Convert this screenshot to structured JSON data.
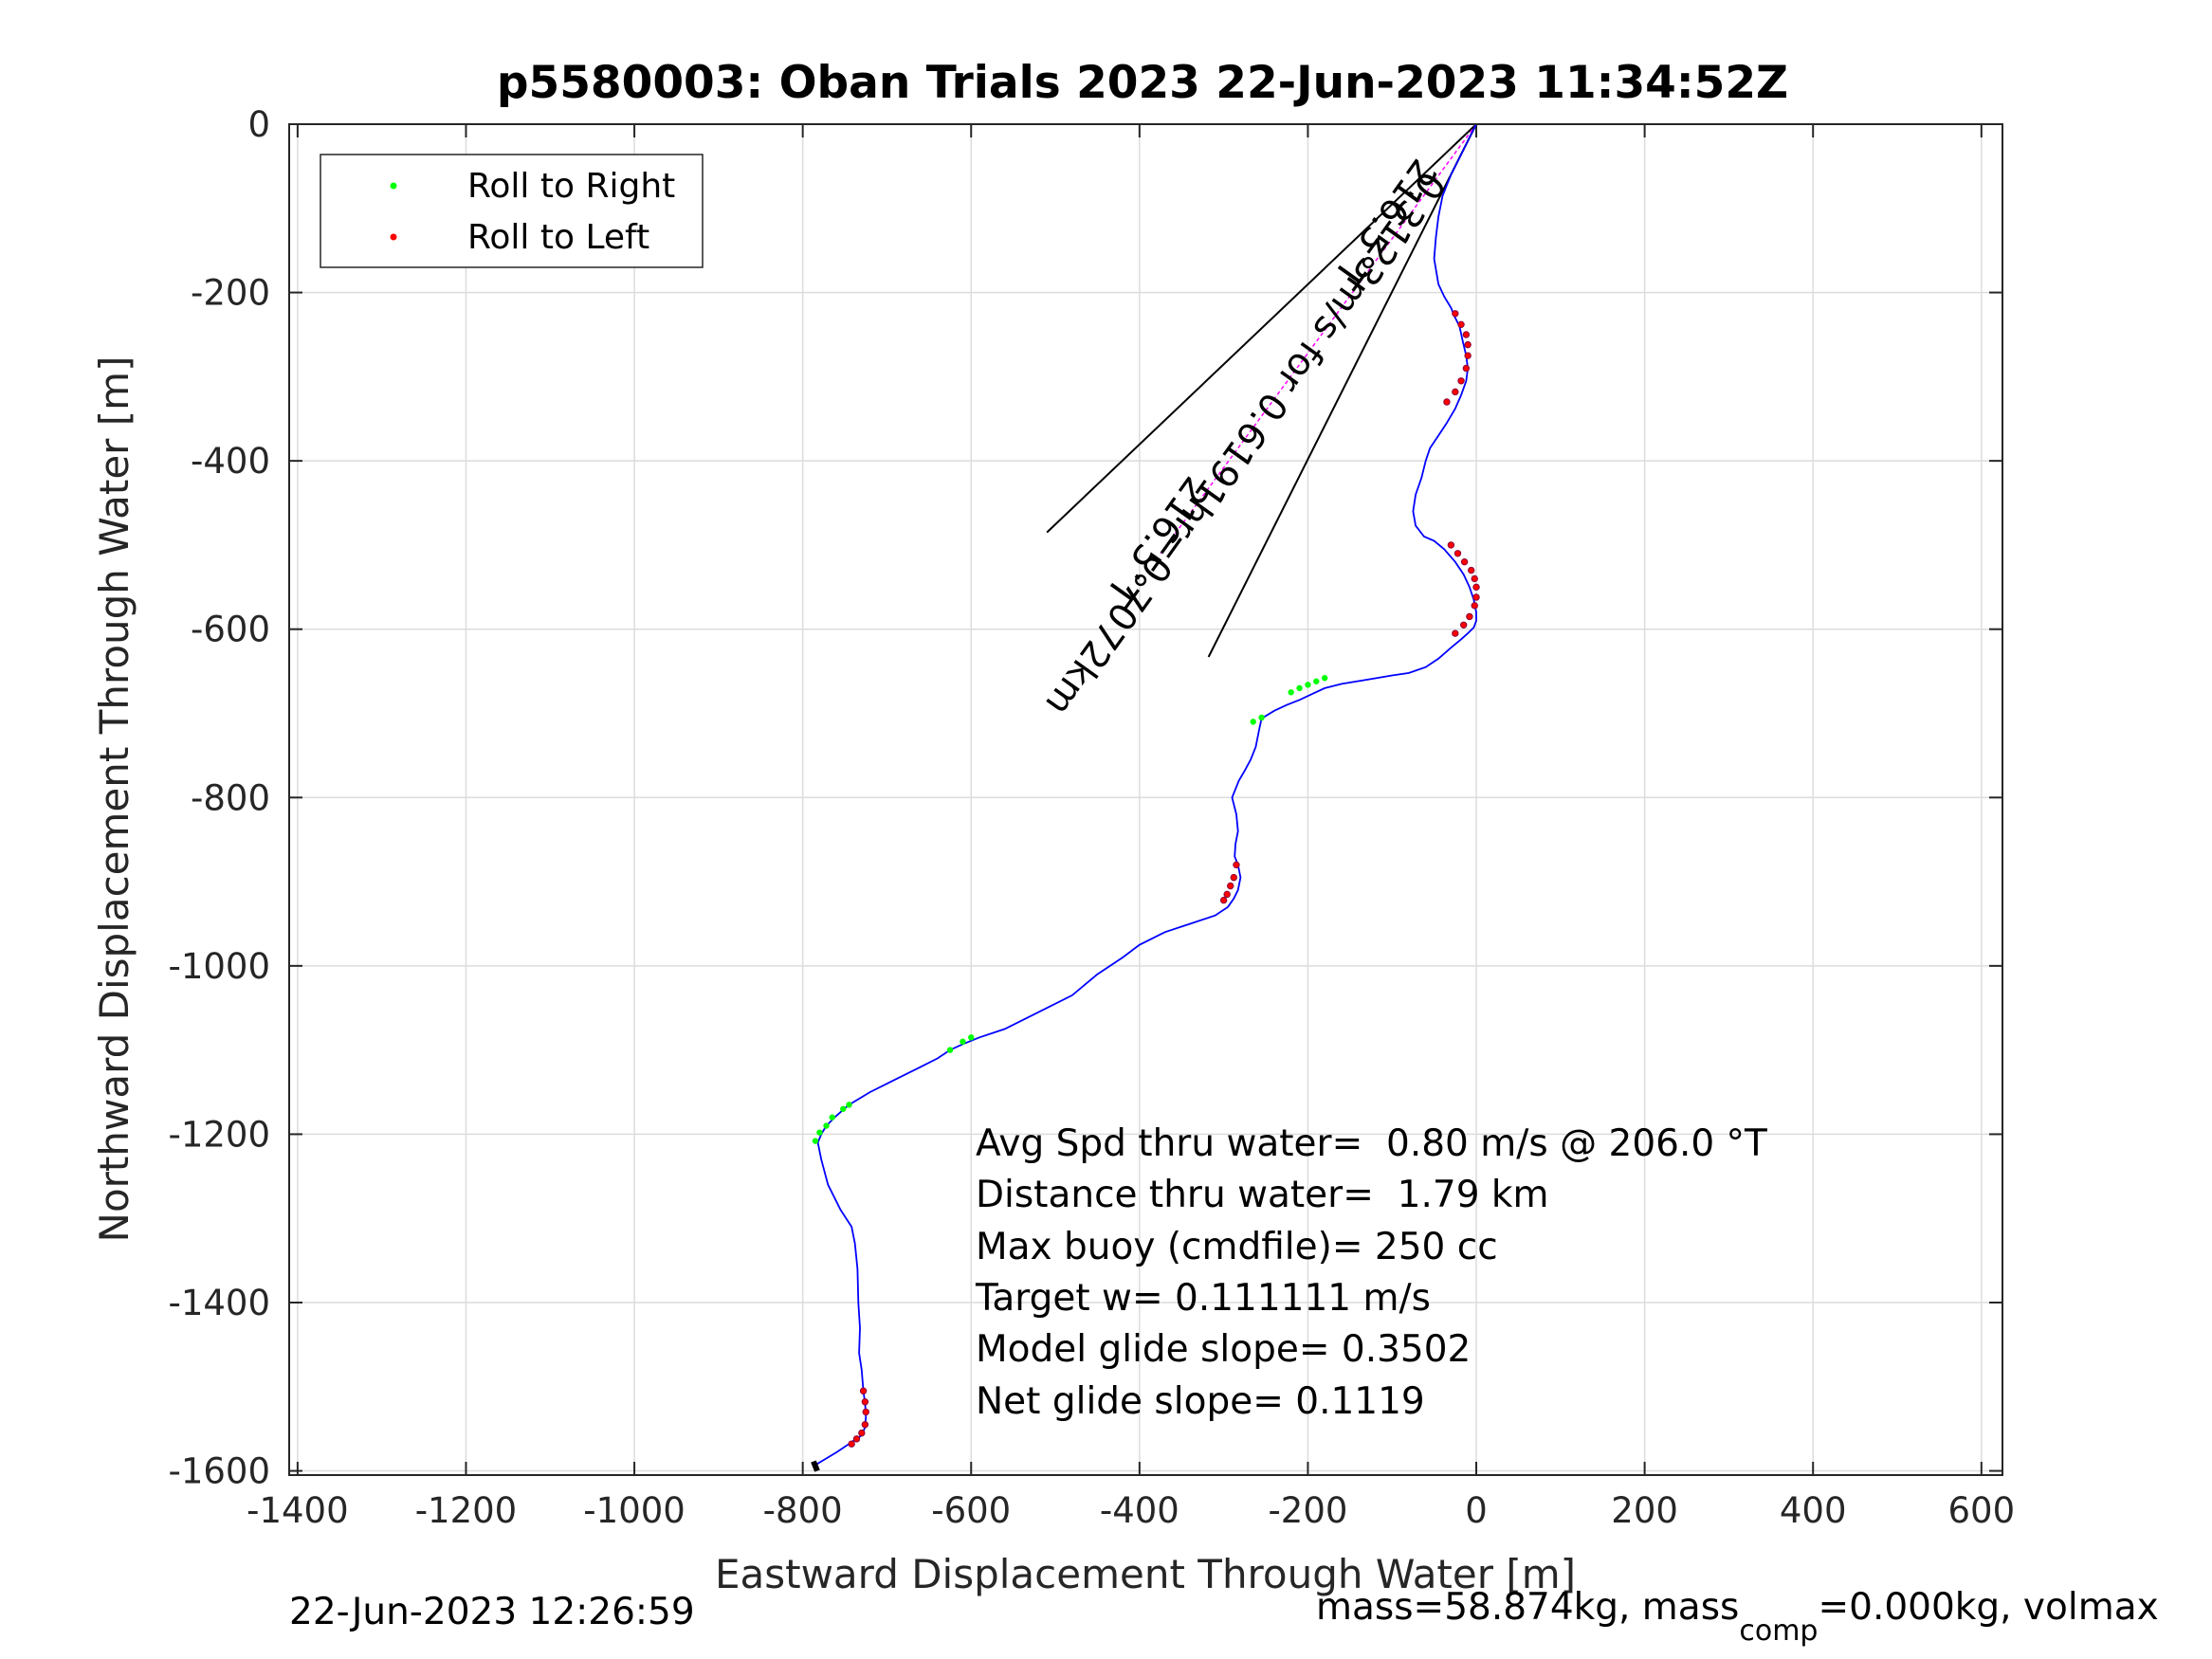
{
  "title": "p5580003: Oban Trials 2023 22-Jun-2023 11:34:52Z",
  "footer": {
    "left": "22-Jun-2023 12:26:59",
    "right_prefix": "mass=58.874kg, mass",
    "right_sub": "comp",
    "right_suffix": "=0.000kg, volmax"
  },
  "legend": [
    {
      "label": "Roll to Right",
      "color": "#00ff00"
    },
    {
      "label": "Roll to Left",
      "color": "#ff0000"
    }
  ],
  "annotations": [
    "Avg Spd thru water=  0.80 m/s @ 206.0 °T",
    "Distance thru water=  1.79 km",
    "Max buoy (cmdfile)= 250 cc",
    "Target w= 0.111111 m/s",
    "Model glide slope= 0.3502",
    "Net glide slope= 0.1119"
  ],
  "rotated_labels": [
    "0.3123m/s for 0.6191hr=0.7072km",
    "216.5°T",
    "216.5°T"
  ],
  "colors": {
    "track": "#0000ff",
    "roll_right": "#00ff00",
    "roll_left": "#ff0000",
    "current": "#ff00ff",
    "grid": "#dcdcdc",
    "axis": "#262626"
  },
  "chart_data": {
    "type": "line",
    "title": "p5580003: Oban Trials 2023 22-Jun-2023 11:34:52Z",
    "xlabel": "Eastward Displacement Through Water [m]",
    "ylabel": "Northward Displacement Through Water [m]",
    "xlim": [
      -1410,
      625
    ],
    "ylim": [
      -1605,
      0
    ],
    "xticks": [
      -1400,
      -1200,
      -1000,
      -800,
      -600,
      -400,
      -200,
      0,
      200,
      400,
      600
    ],
    "yticks": [
      0,
      -200,
      -400,
      -600,
      -800,
      -1000,
      -1200,
      -1400,
      -1600
    ],
    "grid": true,
    "legend_position": "top-left",
    "series": [
      {
        "name": "track",
        "x": [
          0,
          -15,
          -30,
          -40,
          -45,
          -48,
          -50,
          -45,
          -38,
          -30,
          -26,
          -20,
          -16,
          -12,
          -10,
          -12,
          -18,
          -25,
          -35,
          -45,
          -55,
          -60,
          -65,
          -72,
          -75,
          -72,
          -62,
          -50,
          -38,
          -25,
          -15,
          -8,
          -3,
          0,
          0,
          -3,
          -10,
          -18,
          -30,
          -45,
          -60,
          -80,
          -100,
          -130,
          -160,
          -180,
          -195,
          -210,
          -225,
          -240,
          -255,
          -258,
          -262,
          -268,
          -275,
          -282,
          -290,
          -285,
          -283,
          -286,
          -287,
          -283,
          -280,
          -283,
          -288,
          -295,
          -310,
          -340,
          -370,
          -400,
          -420,
          -450,
          -480,
          -520,
          -560,
          -590,
          -610,
          -625,
          -640,
          -660,
          -690,
          -720,
          -745,
          -760,
          -772,
          -778,
          -782,
          -778,
          -770,
          -755,
          -742,
          -738,
          -735,
          -734,
          -732,
          -733,
          -730,
          -728,
          -726,
          -725,
          -726,
          -730,
          -738,
          -745,
          -760,
          -775,
          -785,
          -785
        ],
        "y": [
          0,
          -30,
          -60,
          -85,
          -110,
          -135,
          -160,
          -190,
          -205,
          -218,
          -228,
          -240,
          -258,
          -275,
          -290,
          -305,
          -322,
          -338,
          -355,
          -370,
          -385,
          -400,
          -420,
          -440,
          -460,
          -477,
          -490,
          -495,
          -505,
          -520,
          -535,
          -550,
          -565,
          -580,
          -590,
          -598,
          -605,
          -612,
          -622,
          -635,
          -645,
          -652,
          -655,
          -660,
          -665,
          -670,
          -677,
          -684,
          -690,
          -697,
          -706,
          -720,
          -740,
          -755,
          -768,
          -780,
          -800,
          -820,
          -840,
          -855,
          -870,
          -880,
          -895,
          -910,
          -920,
          -930,
          -940,
          -950,
          -960,
          -975,
          -990,
          -1010,
          -1035,
          -1055,
          -1075,
          -1085,
          -1093,
          -1100,
          -1110,
          -1120,
          -1135,
          -1150,
          -1165,
          -1178,
          -1190,
          -1200,
          -1210,
          -1230,
          -1260,
          -1290,
          -1310,
          -1330,
          -1360,
          -1400,
          -1430,
          -1460,
          -1480,
          -1505,
          -1520,
          -1535,
          -1548,
          -1558,
          -1563,
          -1568,
          -1578,
          -1587,
          -1593,
          -1600
        ]
      },
      {
        "name": "Roll to Right",
        "x": [
          -180,
          -190,
          -200,
          -210,
          -220,
          -255,
          -265,
          -600,
          -610,
          -625,
          -745,
          -752,
          -765,
          -772,
          -780,
          -785
        ],
        "y": [
          -658,
          -662,
          -666,
          -670,
          -675,
          -705,
          -710,
          -1085,
          -1090,
          -1100,
          -1165,
          -1170,
          -1180,
          -1190,
          -1198,
          -1208
        ]
      },
      {
        "name": "Roll to Left",
        "x": [
          -25,
          -18,
          -12,
          -10,
          -10,
          -12,
          -18,
          -25,
          -35,
          -30,
          -22,
          -14,
          -6,
          -2,
          0,
          0,
          -2,
          -8,
          -15,
          -25,
          -285,
          -288,
          -292,
          -296,
          -300,
          -728,
          -726,
          -725,
          -726,
          -730,
          -736,
          -742
        ],
        "y": [
          -225,
          -238,
          -250,
          -262,
          -275,
          -290,
          -305,
          -318,
          -330,
          -500,
          -510,
          -520,
          -530,
          -540,
          -550,
          -562,
          -572,
          -585,
          -595,
          -605,
          -880,
          -895,
          -905,
          -915,
          -922,
          -1505,
          -1518,
          -1530,
          -1545,
          -1555,
          -1562,
          -1568
        ]
      },
      {
        "name": "current-vector",
        "x": [
          0,
          -375
        ],
        "y": [
          0,
          -510
        ]
      }
    ]
  }
}
